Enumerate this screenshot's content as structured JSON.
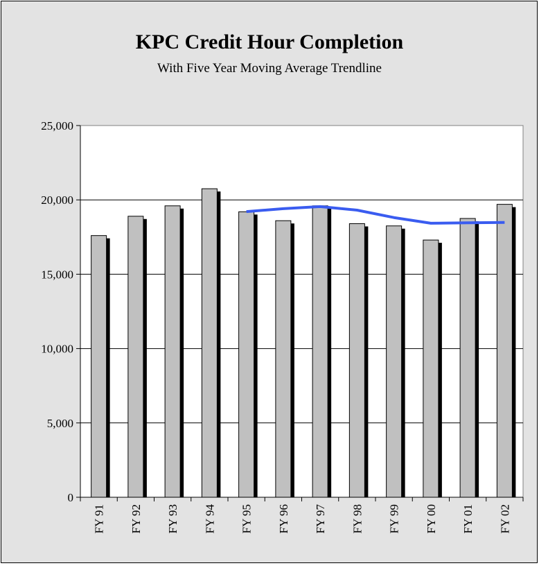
{
  "chart_data": {
    "type": "bar",
    "title": "KPC Credit Hour Completion",
    "subtitle": "With Five Year Moving Average Trendline",
    "categories": [
      "FY 91",
      "FY 92",
      "FY 93",
      "FY 94",
      "FY 95",
      "FY 96",
      "FY 97",
      "FY 98",
      "FY 99",
      "FY 00",
      "FY 01",
      "FY 02"
    ],
    "series": [
      {
        "type": "bar",
        "color": "#c0c0c0",
        "values": [
          17600,
          18900,
          19600,
          20750,
          19200,
          18600,
          19600,
          18400,
          18250,
          17300,
          18750,
          19700
        ]
      },
      {
        "type": "line",
        "color": "#3a5cf0",
        "values": [
          null,
          null,
          null,
          null,
          19210,
          19410,
          19550,
          19310,
          18810,
          18430,
          18460,
          18480
        ]
      }
    ],
    "ylim": [
      0,
      25000
    ],
    "yticks": [
      {
        "value": 0,
        "label": "0"
      },
      {
        "value": 5000,
        "label": "5,000"
      },
      {
        "value": 10000,
        "label": "10,000"
      },
      {
        "value": 15000,
        "label": "15,000"
      },
      {
        "value": 20000,
        "label": "20,000"
      },
      {
        "value": 25000,
        "label": "25,000"
      }
    ],
    "grid": true
  }
}
